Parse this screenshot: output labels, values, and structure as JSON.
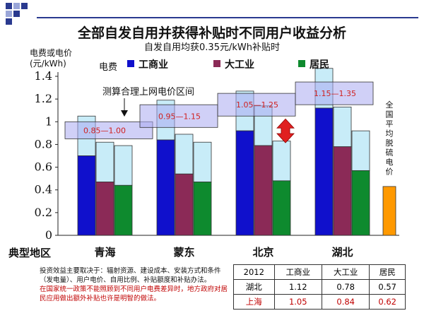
{
  "title": "全部自发自用并获得补贴时不同用户收益分析",
  "subtitle": "自发自用均获0.35元/kWh补贴时",
  "ylabel_lines": [
    "电费或电价",
    "(元/kWh)"
  ],
  "legend_prefix": "电费",
  "region_title": "典型地区",
  "range_annotation": "测算合理上网电价区间",
  "vertical_label": "全国平均脱硫电价",
  "colors": {
    "commercial": "#1010cc",
    "large_industry": "#8b2a57",
    "residential": "#0e8a2e",
    "subsidy": "#c8ecf8",
    "range_box": "#a9a9f0",
    "desulfurization": "#ff9900",
    "range_text": "#d02020"
  },
  "chart_data": {
    "type": "bar",
    "categories": [
      "青海",
      "蒙东",
      "北京",
      "湖北"
    ],
    "series": [
      {
        "name": "工商业",
        "values": [
          0.7,
          0.84,
          0.92,
          1.12
        ]
      },
      {
        "name": "大工业",
        "values": [
          0.47,
          0.54,
          0.79,
          0.78
        ]
      },
      {
        "name": "居民",
        "values": [
          0.44,
          0.47,
          0.48,
          0.57
        ]
      }
    ],
    "subsidy": 0.35,
    "grid_price_ranges": [
      {
        "low": 0.85,
        "high": 1.0,
        "label": "0.85—1.00"
      },
      {
        "low": 0.95,
        "high": 1.15,
        "label": "0.95—1.15"
      },
      {
        "low": 1.05,
        "high": 1.25,
        "label": "1.05—1.25"
      },
      {
        "low": 1.15,
        "high": 1.35,
        "label": "1.15—1.35"
      }
    ],
    "national_desulfurization_price": 0.43,
    "yticks": [
      0,
      0.2,
      0.4,
      0.6,
      0.8,
      1,
      1.2,
      1.4
    ],
    "ytick_labels": [
      "0",
      "0.2",
      "0.4",
      "0.6",
      "0.8",
      "1",
      "1.2",
      "1.4"
    ],
    "ylim": [
      0,
      1.4
    ]
  },
  "note": {
    "line1": "投资效益主要取决于：辐射资源、建设成本、安装方式和条件（发电量）、用户电价、自用比例、补贴额度和补贴办法。",
    "line2": "在国家统一政策不能照顾到不同用户电费差异时，地方政府对居民应用做出额外补贴也许是明智的做法。"
  },
  "table": {
    "header": [
      "2012",
      "工商业",
      "大工业",
      "居民"
    ],
    "rows": [
      [
        "湖北",
        "1.12",
        "0.78",
        "0.57"
      ],
      [
        "上海",
        "1.05",
        "0.84",
        "0.62"
      ]
    ]
  }
}
